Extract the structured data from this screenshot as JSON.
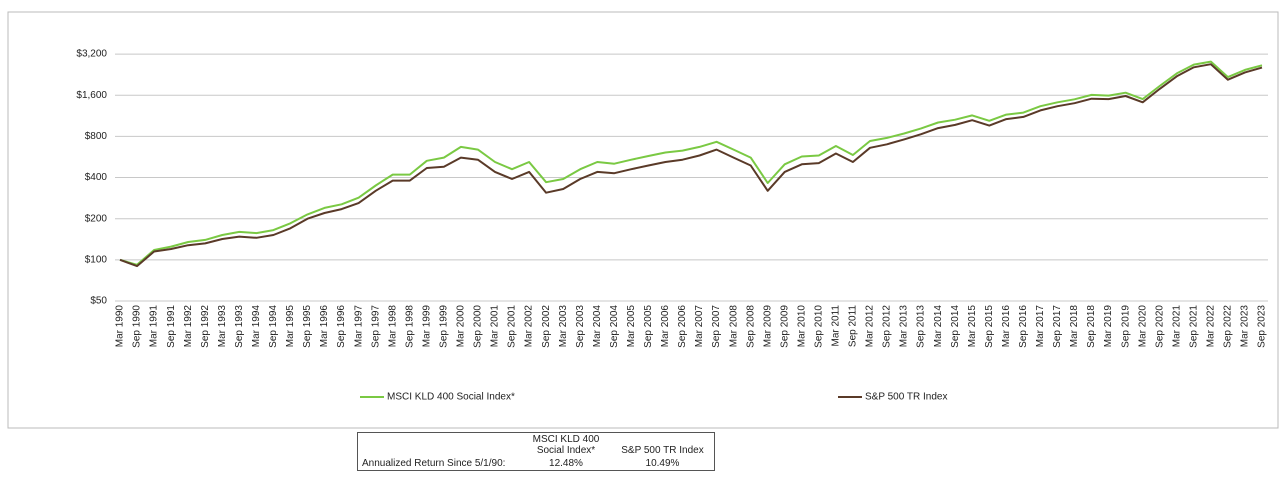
{
  "chart_data": {
    "type": "line",
    "log_scale": true,
    "grid": true,
    "legend": "bottom",
    "categories": [
      "Mar 1990",
      "Sep 1990",
      "Mar 1991",
      "Sep 1991",
      "Mar 1992",
      "Sep 1992",
      "Mar 1993",
      "Sep 1993",
      "Mar 1994",
      "Sep 1994",
      "Mar 1995",
      "Sep 1995",
      "Mar 1996",
      "Sep 1996",
      "Mar 1997",
      "Sep 1997",
      "Mar 1998",
      "Sep 1998",
      "Mar 1999",
      "Sep 1999",
      "Mar 2000",
      "Sep 2000",
      "Mar 2001",
      "Sep 2001",
      "Mar 2002",
      "Sep 2002",
      "Mar 2003",
      "Sep 2003",
      "Mar 2004",
      "Sep 2004",
      "Mar 2005",
      "Sep 2005",
      "Mar 2006",
      "Sep 2006",
      "Mar 2007",
      "Sep 2007",
      "Mar 2008",
      "Sep 2008",
      "Mar 2009",
      "Sep 2009",
      "Mar 2010",
      "Sep 2010",
      "Mar 2011",
      "Sep 2011",
      "Mar 2012",
      "Sep 2012",
      "Mar 2013",
      "Sep 2013",
      "Mar 2014",
      "Sep 2014",
      "Mar 2015",
      "Sep 2015",
      "Mar 2016",
      "Sep 2016",
      "Mar 2017",
      "Sep 2017",
      "Mar 2018",
      "Sep 2018",
      "Mar 2019",
      "Sep 2019",
      "Mar 2020",
      "Sep 2020",
      "Mar 2021",
      "Sep 2021",
      "Mar 2022",
      "Sep 2022",
      "Mar 2023",
      "Sep 2023"
    ],
    "series": [
      {
        "name": "MSCI KLD 400 Social Index*",
        "color": "#7ac943",
        "values": [
          100,
          92,
          118,
          125,
          135,
          140,
          152,
          160,
          157,
          165,
          185,
          215,
          240,
          255,
          285,
          350,
          420,
          420,
          530,
          560,
          670,
          640,
          520,
          460,
          520,
          370,
          390,
          460,
          520,
          505,
          540,
          575,
          610,
          630,
          670,
          730,
          640,
          560,
          365,
          500,
          570,
          580,
          680,
          585,
          740,
          780,
          840,
          915,
          1010,
          1060,
          1140,
          1040,
          1155,
          1195,
          1330,
          1420,
          1495,
          1610,
          1590,
          1670,
          1500,
          1870,
          2310,
          2680,
          2820,
          2170,
          2450,
          2650
        ]
      },
      {
        "name": "S&P 500 TR Index",
        "color": "#5a3a28",
        "values": [
          100,
          90,
          115,
          120,
          128,
          132,
          142,
          148,
          145,
          152,
          170,
          200,
          220,
          235,
          260,
          320,
          380,
          380,
          470,
          480,
          560,
          540,
          440,
          390,
          440,
          310,
          330,
          390,
          440,
          430,
          460,
          490,
          520,
          540,
          580,
          640,
          560,
          490,
          320,
          440,
          500,
          510,
          600,
          520,
          660,
          700,
          760,
          830,
          920,
          970,
          1050,
          960,
          1070,
          1110,
          1240,
          1330,
          1400,
          1510,
          1500,
          1580,
          1420,
          1780,
          2200,
          2560,
          2700,
          2080,
          2350,
          2550
        ]
      }
    ],
    "ylim": [
      50,
      4800
    ],
    "yticks": [
      {
        "value": 50,
        "label": "$50"
      },
      {
        "value": 100,
        "label": "$100"
      },
      {
        "value": 200,
        "label": "$200"
      },
      {
        "value": 400,
        "label": "$400"
      },
      {
        "value": 800,
        "label": "$800"
      },
      {
        "value": 1600,
        "label": "$1,600"
      },
      {
        "value": 3200,
        "label": "$3,200"
      }
    ]
  },
  "table": {
    "columns": [
      "MSCI KLD 400 Social Index*",
      "S&P 500 TR Index"
    ],
    "rows": [
      [
        "Annualized Return Since 5/1/90:",
        "12.48%",
        "10.49%"
      ]
    ]
  }
}
